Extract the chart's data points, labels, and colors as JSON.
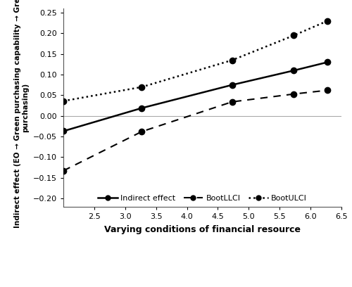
{
  "x_values": [
    2.0,
    3.27,
    4.73,
    5.73,
    6.27
  ],
  "indirect_effect": [
    -0.037,
    0.019,
    0.075,
    0.11,
    0.13
  ],
  "boot_llci": [
    -0.133,
    -0.038,
    0.034,
    0.053,
    0.062
  ],
  "boot_ulci": [
    0.036,
    0.07,
    0.135,
    0.195,
    0.23
  ],
  "xlim": [
    2.0,
    6.5
  ],
  "ylim": [
    -0.22,
    0.26
  ],
  "xticks": [
    2.5,
    3.0,
    3.5,
    4.0,
    4.5,
    5.0,
    5.5,
    6.0,
    6.5
  ],
  "yticks": [
    -0.2,
    -0.15,
    -0.1,
    -0.05,
    0.0,
    0.05,
    0.1,
    0.15,
    0.2,
    0.25
  ],
  "xlabel": "Varying conditions of financial resource",
  "ylabel_line1": "Indirect effect (EO → Green purchasing capability → Green",
  "ylabel_line2": "purchasing)",
  "hline_y": 0.0,
  "line_color": "#000000",
  "background_color": "#ffffff",
  "legend_labels": [
    "Indirect effect",
    "BootLLCI",
    "BootULCI"
  ]
}
